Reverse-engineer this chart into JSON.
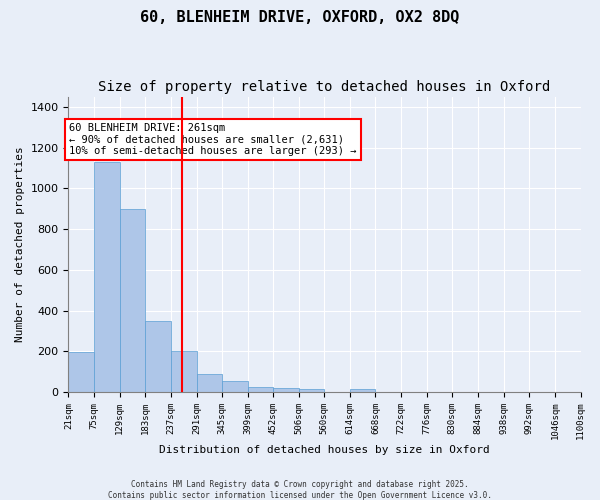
{
  "title1": "60, BLENHEIM DRIVE, OXFORD, OX2 8DQ",
  "title2": "Size of property relative to detached houses in Oxford",
  "xlabel": "Distribution of detached houses by size in Oxford",
  "ylabel": "Number of detached properties",
  "bin_labels": [
    "21sqm",
    "75sqm",
    "129sqm",
    "183sqm",
    "237sqm",
    "291sqm",
    "345sqm",
    "399sqm",
    "452sqm",
    "506sqm",
    "560sqm",
    "614sqm",
    "668sqm",
    "722sqm",
    "776sqm",
    "830sqm",
    "884sqm",
    "938sqm",
    "992sqm",
    "1046sqm",
    "1100sqm"
  ],
  "bin_edges": [
    21,
    75,
    129,
    183,
    237,
    291,
    345,
    399,
    452,
    506,
    560,
    614,
    668,
    722,
    776,
    830,
    884,
    938,
    992,
    1046,
    1100
  ],
  "bar_heights": [
    195,
    1130,
    900,
    350,
    200,
    90,
    55,
    25,
    20,
    15,
    0,
    15,
    0,
    0,
    0,
    0,
    0,
    0,
    0,
    0
  ],
  "bar_color": "#aec6e8",
  "bar_edge_color": "#5a9fd4",
  "vline_x": 261,
  "vline_color": "red",
  "ylim": [
    0,
    1450
  ],
  "yticks": [
    0,
    200,
    400,
    600,
    800,
    1000,
    1200,
    1400
  ],
  "annotation_title": "60 BLENHEIM DRIVE: 261sqm",
  "annotation_line1": "← 90% of detached houses are smaller (2,631)",
  "annotation_line2": "10% of semi-detached houses are larger (293) →",
  "footer1": "Contains HM Land Registry data © Crown copyright and database right 2025.",
  "footer2": "Contains public sector information licensed under the Open Government Licence v3.0.",
  "background_color": "#e8eef8",
  "plot_bg_color": "#e8eef8",
  "title_fontsize": 11,
  "subtitle_fontsize": 10
}
